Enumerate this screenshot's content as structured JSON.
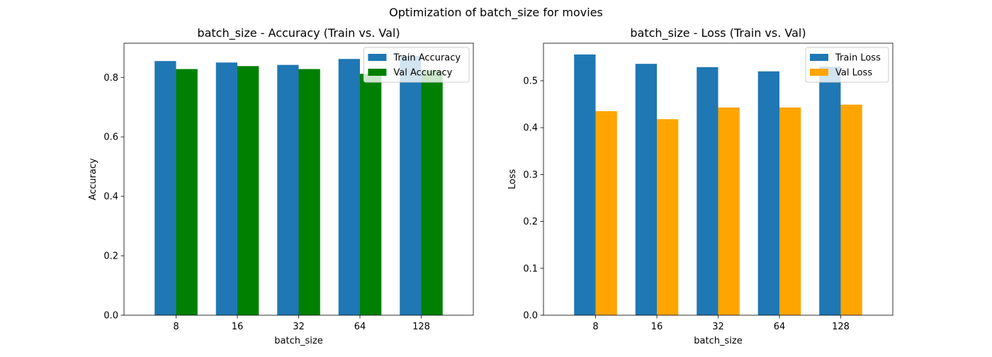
{
  "suptitle": "Optimization of batch_size for movies",
  "chart_data": [
    {
      "type": "bar",
      "title": "batch_size - Accuracy (Train vs. Val)",
      "xlabel": "batch_size",
      "ylabel": "Accuracy",
      "categories": [
        "8",
        "16",
        "32",
        "64",
        "128"
      ],
      "ylim": [
        0,
        0.915
      ],
      "yticks": [
        "0.0",
        "0.2",
        "0.4",
        "0.6",
        "0.8"
      ],
      "legend_position": "top-right",
      "grid": false,
      "series": [
        {
          "name": "Train Accuracy",
          "color": "#1f77b4",
          "values": [
            0.855,
            0.85,
            0.842,
            0.862,
            0.872
          ]
        },
        {
          "name": "Val Accuracy",
          "color": "#008000",
          "values": [
            0.828,
            0.838,
            0.828,
            0.812,
            0.822
          ]
        }
      ]
    },
    {
      "type": "bar",
      "title": "batch_size - Loss (Train vs. Val)",
      "xlabel": "batch_size",
      "ylabel": "Loss",
      "categories": [
        "8",
        "16",
        "32",
        "64",
        "128"
      ],
      "ylim": [
        0,
        0.58
      ],
      "yticks": [
        "0.0",
        "0.1",
        "0.2",
        "0.3",
        "0.4",
        "0.5"
      ],
      "legend_position": "top-right",
      "grid": false,
      "series": [
        {
          "name": "Train Loss",
          "color": "#1f77b4",
          "values": [
            0.556,
            0.536,
            0.529,
            0.52,
            0.53
          ]
        },
        {
          "name": "Val Loss",
          "color": "#ffa500",
          "values": [
            0.435,
            0.418,
            0.443,
            0.443,
            0.449
          ]
        }
      ]
    }
  ]
}
